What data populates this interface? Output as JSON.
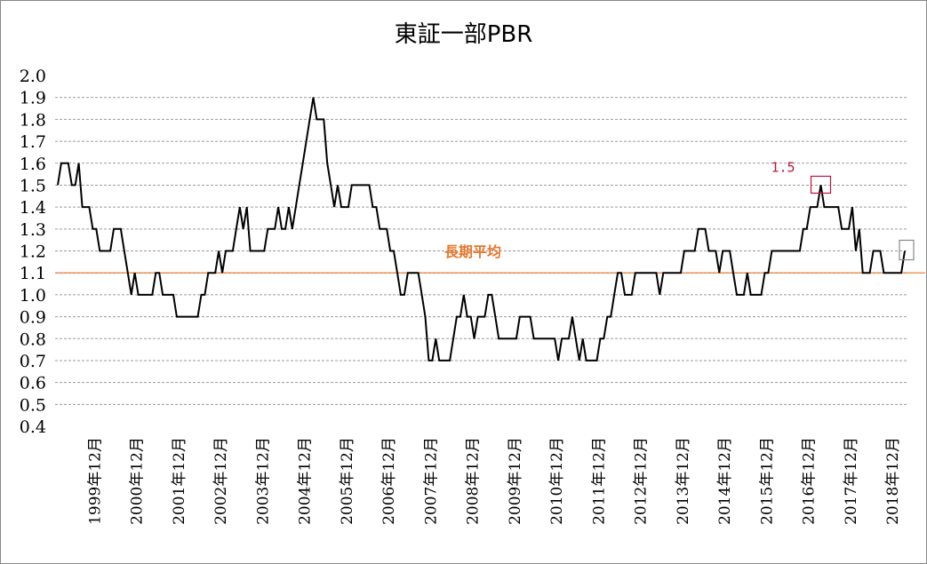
{
  "chart_data": {
    "type": "line",
    "title": "東証一部PBR",
    "xlabel": "",
    "ylabel": "",
    "ylim": [
      0.4,
      2.0
    ],
    "yticks": [
      "2.0",
      "1.9",
      "1.8",
      "1.7",
      "1.6",
      "1.5",
      "1.4",
      "1.3",
      "1.2",
      "1.1",
      "1.0",
      "0.9",
      "0.8",
      "0.7",
      "0.6",
      "0.5",
      "0.4"
    ],
    "xlabels": [
      "1999年12月",
      "2000年12月",
      "2001年12月",
      "2002年12月",
      "2003年12月",
      "2004年12月",
      "2005年12月",
      "2006年12月",
      "2007年12月",
      "2008年12月",
      "2009年12月",
      "2010年12月",
      "2011年12月",
      "2012年12月",
      "2013年12月",
      "2014年12月",
      "2015年12月",
      "2016年12月",
      "2017年12月",
      "2018年12月"
    ],
    "grid": true,
    "series": [
      {
        "color": "#000000",
        "start": "1999-01",
        "values": [
          1.5,
          1.6,
          1.6,
          1.6,
          1.5,
          1.5,
          1.6,
          1.4,
          1.4,
          1.4,
          1.3,
          1.3,
          1.2,
          1.2,
          1.2,
          1.2,
          1.3,
          1.3,
          1.3,
          1.2,
          1.1,
          1.0,
          1.1,
          1.0,
          1.0,
          1.0,
          1.0,
          1.0,
          1.1,
          1.1,
          1.0,
          1.0,
          1.0,
          1.0,
          0.9,
          0.9,
          0.9,
          0.9,
          0.9,
          0.9,
          0.9,
          1.0,
          1.0,
          1.1,
          1.1,
          1.1,
          1.2,
          1.1,
          1.2,
          1.2,
          1.2,
          1.3,
          1.4,
          1.3,
          1.4,
          1.2,
          1.2,
          1.2,
          1.2,
          1.2,
          1.3,
          1.3,
          1.3,
          1.4,
          1.3,
          1.3,
          1.4,
          1.3,
          1.4,
          1.5,
          1.6,
          1.7,
          1.8,
          1.9,
          1.8,
          1.8,
          1.8,
          1.6,
          1.5,
          1.4,
          1.5,
          1.4,
          1.4,
          1.4,
          1.5,
          1.5,
          1.5,
          1.5,
          1.5,
          1.5,
          1.4,
          1.4,
          1.3,
          1.3,
          1.3,
          1.2,
          1.2,
          1.1,
          1.0,
          1.0,
          1.1,
          1.1,
          1.1,
          1.1,
          1.0,
          0.9,
          0.7,
          0.7,
          0.8,
          0.7,
          0.7,
          0.7,
          0.7,
          0.8,
          0.9,
          0.9,
          1.0,
          0.9,
          0.9,
          0.8,
          0.9,
          0.9,
          0.9,
          1.0,
          1.0,
          0.9,
          0.8,
          0.8,
          0.8,
          0.8,
          0.8,
          0.8,
          0.9,
          0.9,
          0.9,
          0.9,
          0.8,
          0.8,
          0.8,
          0.8,
          0.8,
          0.8,
          0.8,
          0.7,
          0.8,
          0.8,
          0.8,
          0.9,
          0.8,
          0.7,
          0.8,
          0.7,
          0.7,
          0.7,
          0.7,
          0.8,
          0.8,
          0.9,
          0.9,
          1.0,
          1.1,
          1.1,
          1.0,
          1.0,
          1.0,
          1.1,
          1.1,
          1.1,
          1.1,
          1.1,
          1.1,
          1.1,
          1.0,
          1.1,
          1.1,
          1.1,
          1.1,
          1.1,
          1.1,
          1.2,
          1.2,
          1.2,
          1.2,
          1.3,
          1.3,
          1.3,
          1.2,
          1.2,
          1.2,
          1.1,
          1.2,
          1.2,
          1.2,
          1.1,
          1.0,
          1.0,
          1.0,
          1.1,
          1.0,
          1.0,
          1.0,
          1.0,
          1.1,
          1.1,
          1.2,
          1.2,
          1.2,
          1.2,
          1.2,
          1.2,
          1.2,
          1.2,
          1.2,
          1.3,
          1.3,
          1.4,
          1.4,
          1.4,
          1.5,
          1.4,
          1.4,
          1.4,
          1.4,
          1.4,
          1.3,
          1.3,
          1.3,
          1.4,
          1.2,
          1.3,
          1.1,
          1.1,
          1.1,
          1.2,
          1.2,
          1.2,
          1.1,
          1.1,
          1.1,
          1.1,
          1.1,
          1.1,
          1.2
        ]
      }
    ],
    "reference_line": {
      "value": 1.1,
      "label": "長期平均",
      "color": "#e8762a"
    },
    "annotations": [
      {
        "text": "1.5",
        "color": "#c0143c"
      }
    ]
  }
}
